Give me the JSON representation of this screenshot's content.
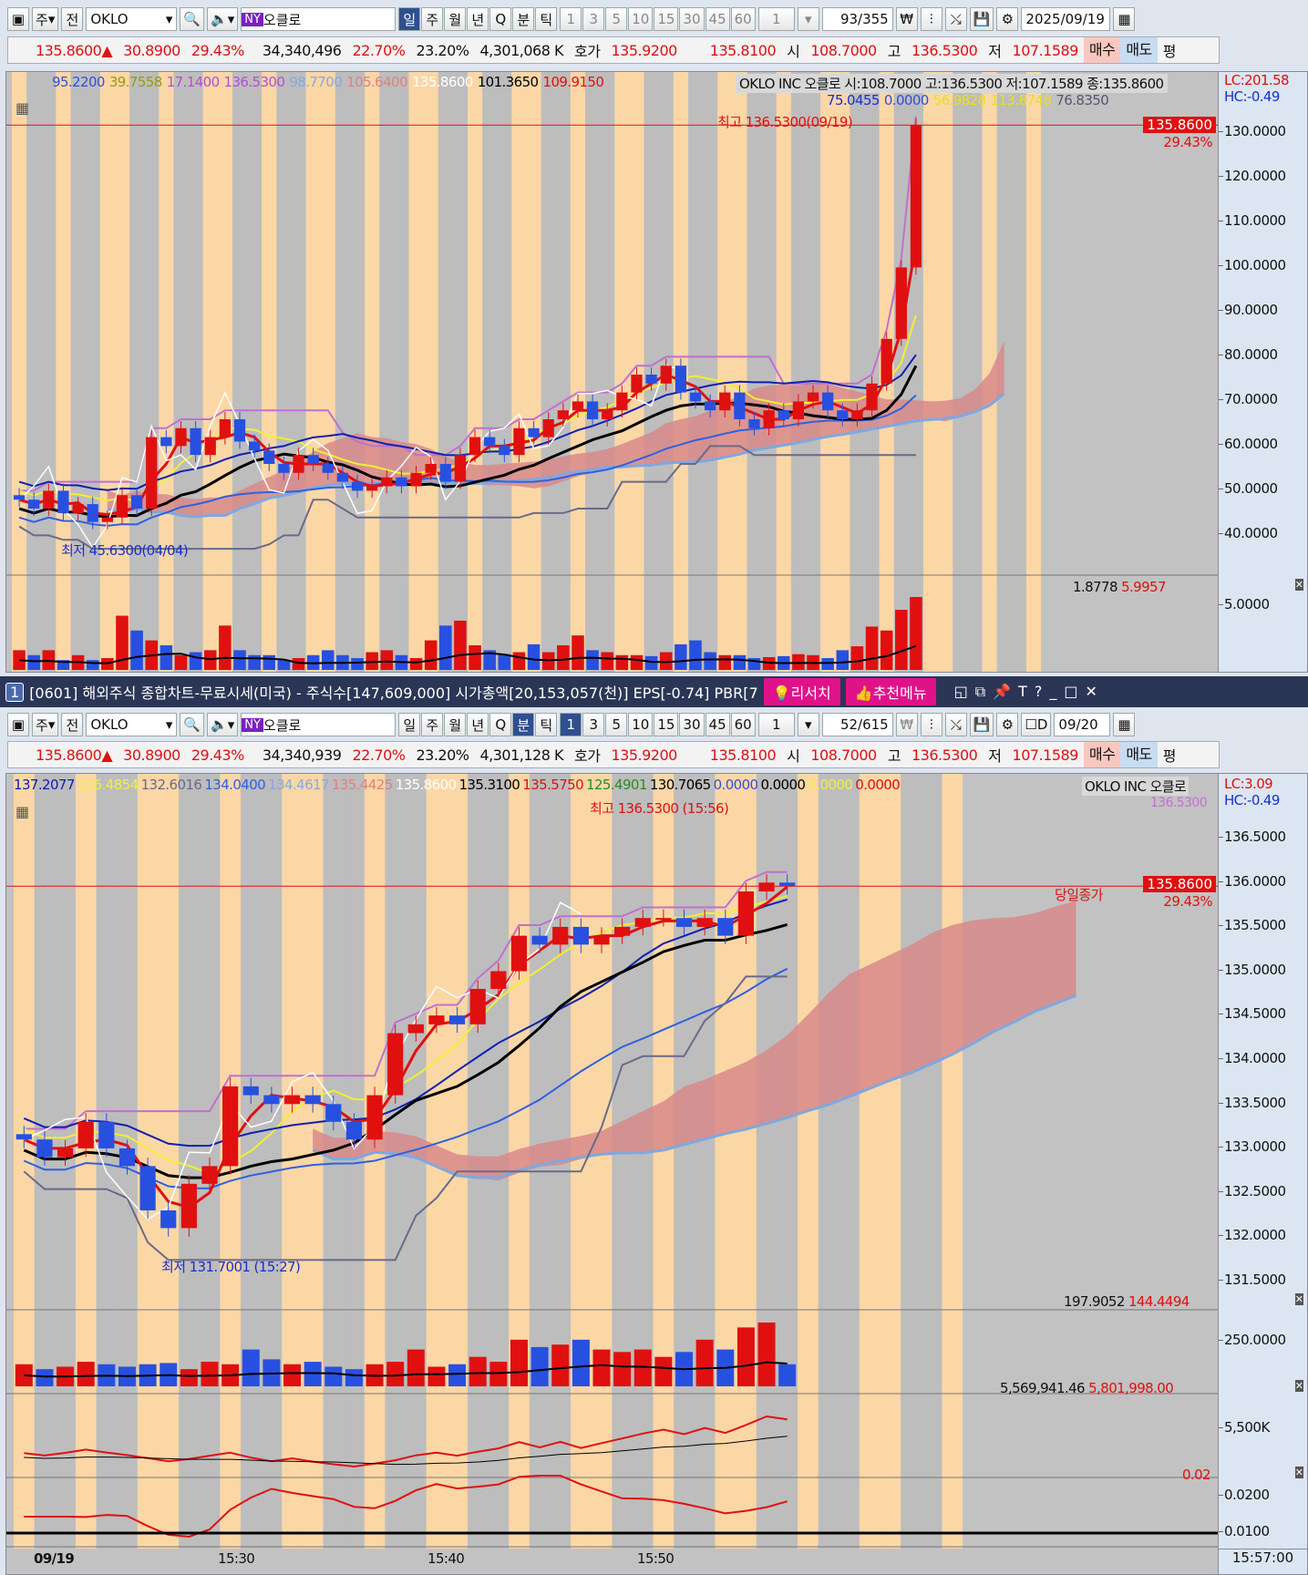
{
  "toolbar1": {
    "market": "주",
    "full": "전",
    "symbol": "OKLO",
    "exchange": "NY",
    "name": "오클로",
    "periods": [
      "일",
      "주",
      "월",
      "년",
      "Q",
      "분",
      "틱"
    ],
    "selected_period": "일",
    "minutes": [
      "1",
      "3",
      "5",
      "10",
      "15",
      "30",
      "45",
      "60"
    ],
    "multiplier": "1",
    "count": "93/355",
    "date": "2025/09/19"
  },
  "info1": {
    "price": "135.8600▲",
    "change": "30.8900",
    "pct": "29.43%",
    "volume": "34,340,496",
    "turn1": "22.70%",
    "turn2": "23.20%",
    "amount": "4,301,068 K",
    "hoga": "호가",
    "ask": "135.9200",
    "bid": "135.8100",
    "open_l": "시",
    "open": "108.7000",
    "high_l": "고",
    "high": "136.5300",
    "low_l": "저",
    "low": "107.1589",
    "buy": "매수",
    "sell": "매도",
    "avg": "평"
  },
  "chart1": {
    "legend": [
      {
        "t": "95.2200",
        "c": "#3050e0"
      },
      {
        "t": "39.7558",
        "c": "#9a9a10"
      },
      {
        "t": "17.1400",
        "c": "#b050d0"
      },
      {
        "t": "136.5300",
        "c": "#b050d0"
      },
      {
        "t": "98.7700",
        "c": "#88a8e0"
      },
      {
        "t": "105.6400",
        "c": "#e08080"
      },
      {
        "t": "135.8600",
        "c": "#ffffff"
      },
      {
        "t": "101.3650",
        "c": "#000000"
      },
      {
        "t": "109.9150",
        "c": "#e01010"
      }
    ],
    "legend2": [
      {
        "t": "75.0455",
        "c": "#1530d0"
      },
      {
        "t": "0.0000",
        "c": "#3050e0"
      },
      {
        "t": "56.9828",
        "c": "#e8e020"
      },
      {
        "t": "113.8748",
        "c": "#e8e020"
      },
      {
        "t": "76.8350",
        "c": "#555577"
      }
    ],
    "stock_label": "OKLO INC  오클로 시:108.7000 고:136.5300 저:107.1589 종:135.8600",
    "lc": "LC:201.58",
    "hc": "HC:-0.49",
    "high_note": "최고 136.5300(09/19)",
    "low_note": "최저 45.6300(04/04)",
    "price_tag": "135.8600",
    "pct_tag": "29.43%",
    "axis": [
      "130.0000",
      "120.0000",
      "110.0000",
      "100.0000",
      "90.0000",
      "80.0000",
      "70.0000",
      "60.0000",
      "50.0000",
      "40.0000"
    ],
    "vol_labels": {
      "a": "1.8778",
      "b": "5.9957",
      "axis": "5.0000"
    }
  },
  "title_bar": {
    "num": "1",
    "text": "[0601] 해외주식 종합차트-무료시세(미국) - 주식수[147,609,000] 시가총액[20,153,057(천)] EPS[-0.74] PBR[7",
    "research": "리서치",
    "recommend": "추천메뉴"
  },
  "toolbar2": {
    "market": "주",
    "full": "전",
    "symbol": "OKLO",
    "exchange": "NY",
    "name": "오클로",
    "periods": [
      "일",
      "주",
      "월",
      "년",
      "Q",
      "분",
      "틱"
    ],
    "selected_period": "분",
    "minutes": [
      "1",
      "3",
      "5",
      "10",
      "15",
      "30",
      "45",
      "60"
    ],
    "selected_minute": "1",
    "multiplier": "1",
    "count": "52/615",
    "d_label": "D",
    "date": "09/20"
  },
  "info2": {
    "price": "135.8600▲",
    "change": "30.8900",
    "pct": "29.43%",
    "volume": "34,340,939",
    "turn1": "22.70%",
    "turn2": "23.20%",
    "amount": "4,301,128 K",
    "hoga": "호가",
    "ask": "135.9200",
    "bid": "135.8100",
    "open_l": "시",
    "open": "108.7000",
    "high_l": "고",
    "high": "136.5300",
    "low_l": "저",
    "low": "107.1589",
    "buy": "매수",
    "sell": "매도",
    "avg": "평"
  },
  "chart2": {
    "legend": [
      {
        "t": "137.2077",
        "c": "#1020b0"
      },
      {
        "t": "136.4854",
        "c": "#f0f040"
      },
      {
        "t": "132.6016",
        "c": "#6a6a8a"
      },
      {
        "t": "134.0400",
        "c": "#3060e0"
      },
      {
        "t": "134.4617",
        "c": "#88a8e0"
      },
      {
        "t": "135.4425",
        "c": "#e08080"
      },
      {
        "t": "135.8600",
        "c": "#ffffff"
      },
      {
        "t": "135.3100",
        "c": "#000000"
      },
      {
        "t": "135.5750",
        "c": "#e01010"
      },
      {
        "t": "125.4901",
        "c": "#2a8a2a"
      },
      {
        "t": "130.7065",
        "c": "#000000"
      },
      {
        "t": "0.0000",
        "c": "#3050e0"
      },
      {
        "t": "0.0000",
        "c": "#000000"
      },
      {
        "t": "0.0000",
        "c": "#f0f040"
      },
      {
        "t": "0.0000",
        "c": "#e01010"
      }
    ],
    "stock_label": "OKLO INC  오클로",
    "lc": "LC:3.09",
    "hc": "HC:-0.49",
    "high_small": "136.5300",
    "high_note": "최고 136.5300 (15:56)",
    "low_note": "최저 131.7001 (15:27)",
    "close_note": "당일종가",
    "price_tag": "135.8600",
    "pct_tag": "29.43%",
    "axis": [
      "136.5000",
      "136.0000",
      "135.5000",
      "135.0000",
      "134.5000",
      "134.0000",
      "133.5000",
      "133.0000",
      "132.5000",
      "132.0000",
      "131.5000"
    ],
    "vol": {
      "a": "197.9052",
      "b": "144.4494",
      "axis": "250.0000"
    },
    "obv": {
      "a": "5,569,941.46",
      "b": "5,801,998.00",
      "axis": "5,500K"
    },
    "osc": {
      "a": "0.02",
      "axis1": "0.0200",
      "axis2": "0.0100"
    },
    "time_axis": [
      "09/19",
      "15:30",
      "15:40",
      "15:50"
    ],
    "time_cursor": "15:57:00"
  },
  "chart_data": {
    "type": "candlestick",
    "daily_closes": [
      52,
      50,
      54,
      49,
      51,
      47,
      48,
      53,
      50,
      66,
      64,
      68,
      62,
      66,
      70,
      65,
      63,
      60,
      58,
      62,
      60,
      58,
      56,
      54,
      55,
      57,
      55,
      58,
      60,
      56,
      62,
      66,
      64,
      62,
      68,
      66,
      70,
      72,
      74,
      70,
      72,
      76,
      80,
      78,
      82,
      76,
      74,
      72,
      76,
      70,
      68,
      72,
      70,
      74,
      76,
      72,
      70,
      72,
      78,
      88,
      104,
      135.86
    ],
    "daily_volume": [
      2,
      1.5,
      2,
      1,
      1.5,
      1,
      1.2,
      5.5,
      4,
      3,
      2.5,
      1.5,
      1.8,
      2,
      4.5,
      2,
      1.5,
      1.5,
      1,
      1.2,
      1.5,
      2,
      1.5,
      1.2,
      1.8,
      2,
      1.5,
      1.2,
      3,
      4.5,
      5,
      2.5,
      2,
      1.6,
      1.8,
      2.6,
      1.8,
      2.5,
      3.5,
      2,
      1.8,
      1.5,
      1.5,
      1.4,
      1.8,
      2.6,
      3,
      1.8,
      1.5,
      1.5,
      1.2,
      1.3,
      1.4,
      1.6,
      1.5,
      1.2,
      2,
      2.4,
      4.4,
      4,
      6.1,
      7.4
    ],
    "minute_closes": [
      133.0,
      132.8,
      132.9,
      133.2,
      132.9,
      132.7,
      132.2,
      132.0,
      132.5,
      132.7,
      133.6,
      133.5,
      133.4,
      133.5,
      133.4,
      133.2,
      133.0,
      133.5,
      134.2,
      134.3,
      134.4,
      134.3,
      134.7,
      134.9,
      135.3,
      135.2,
      135.4,
      135.2,
      135.3,
      135.4,
      135.5,
      135.5,
      135.4,
      135.5,
      135.3,
      135.8,
      135.9,
      135.86
    ],
    "minute_volume": [
      90,
      70,
      80,
      100,
      90,
      80,
      90,
      95,
      70,
      100,
      90,
      150,
      110,
      90,
      100,
      80,
      70,
      90,
      100,
      150,
      80,
      90,
      120,
      100,
      190,
      160,
      170,
      190,
      150,
      140,
      150,
      120,
      140,
      190,
      150,
      240,
      260,
      90
    ]
  }
}
